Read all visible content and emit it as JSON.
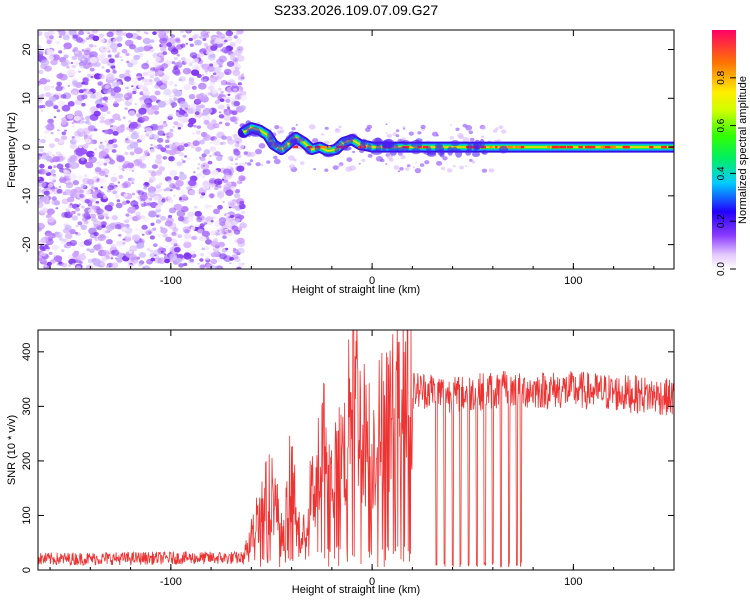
{
  "title": "S233.2026.109.07.09.G27",
  "chart_data": [
    {
      "type": "heatmap",
      "xlabel": "Height of straight line (km)",
      "ylabel": "Frequency (Hz)",
      "xlim": [
        -166,
        150
      ],
      "ylim": [
        -25,
        24
      ],
      "x_ticks": [
        -100,
        0,
        100
      ],
      "y_ticks": [
        20,
        10,
        0,
        -10,
        -20
      ],
      "colorbar": {
        "label": "Normalized spectral amplitude",
        "range": [
          0,
          1
        ],
        "ticks": [
          0.0,
          0.2,
          0.4,
          0.6,
          0.8
        ]
      },
      "noise_region_x": [
        -166,
        -64
      ],
      "signal_track": [
        {
          "x": -64,
          "y": 3.0
        },
        {
          "x": -60,
          "y": 4.0
        },
        {
          "x": -56,
          "y": 3.5
        },
        {
          "x": -52,
          "y": 2.5
        },
        {
          "x": -49,
          "y": 0.5
        },
        {
          "x": -45,
          "y": -0.5
        },
        {
          "x": -42,
          "y": 0.5
        },
        {
          "x": -38,
          "y": 2.0
        },
        {
          "x": -34,
          "y": 1.0
        },
        {
          "x": -30,
          "y": -0.5
        },
        {
          "x": -26,
          "y": 0.0
        },
        {
          "x": -22,
          "y": -0.8
        },
        {
          "x": -18,
          "y": -0.5
        },
        {
          "x": -14,
          "y": 1.0
        },
        {
          "x": -10,
          "y": 1.5
        },
        {
          "x": -6,
          "y": 0.5
        },
        {
          "x": -2,
          "y": 0.2
        },
        {
          "x": 0,
          "y": 0.0
        },
        {
          "x": 150,
          "y": 0.0
        }
      ]
    },
    {
      "type": "line",
      "xlabel": "Height of straight line (km)",
      "ylabel": "SNR (10 * v/v)",
      "xlim": [
        -166,
        150
      ],
      "ylim": [
        0,
        440
      ],
      "x_ticks": [
        -100,
        0,
        100
      ],
      "y_ticks": [
        0,
        100,
        200,
        300,
        400
      ],
      "color": "#ee3333",
      "series": [
        {
          "x": [
            -166,
            -100,
            -64,
            -56,
            -50,
            -44,
            -40,
            -35,
            -32,
            -28,
            -24,
            -20,
            -16,
            -12,
            -10,
            -6,
            0,
            6,
            12,
            20,
            30,
            40,
            60,
            80,
            100,
            120,
            140,
            150
          ],
          "values": [
            20,
            22,
            22,
            110,
            150,
            60,
            190,
            40,
            120,
            160,
            240,
            160,
            200,
            240,
            420,
            270,
            220,
            280,
            290,
            330,
            330,
            320,
            330,
            330,
            330,
            325,
            320,
            315
          ]
        }
      ],
      "dropouts_x": [
        32,
        36,
        40,
        44,
        48,
        52,
        56,
        60,
        64,
        68,
        72,
        74
      ]
    }
  ]
}
